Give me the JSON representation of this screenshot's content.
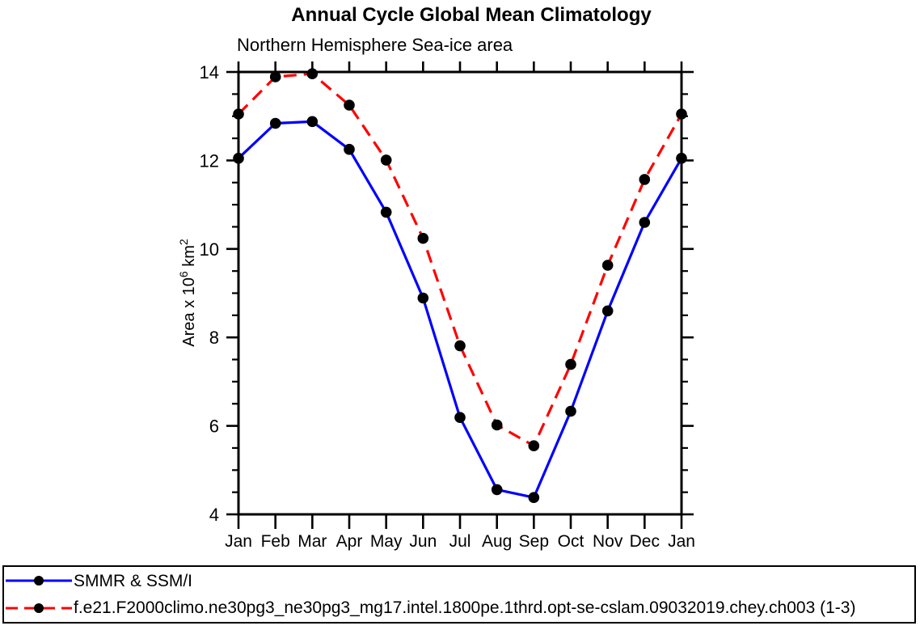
{
  "page": {
    "background_color": "#ffffff"
  },
  "chart_data": {
    "type": "line",
    "title": "Annual Cycle Global Mean Climatology",
    "subtitle": "Northern Hemisphere Sea-ice area",
    "x_categories": [
      "Jan",
      "Feb",
      "Mar",
      "Apr",
      "May",
      "Jun",
      "Jul",
      "Aug",
      "Sep",
      "Oct",
      "Nov",
      "Dec",
      "Jan"
    ],
    "ylabel_parts": [
      {
        "text": "Area x 10",
        "sup": false
      },
      {
        "text": "6",
        "sup": true
      },
      {
        "text": " km",
        "sup": false
      },
      {
        "text": "2",
        "sup": true
      }
    ],
    "ylim": [
      4,
      14
    ],
    "ytick_major": [
      4,
      6,
      8,
      10,
      12,
      14
    ],
    "ytick_minor_step": 0.5,
    "grid": false,
    "legend_position": "bottom-box",
    "series": [
      {
        "name": "SMMR & SSM/I",
        "color": "#0000ff",
        "line_style": "solid",
        "marker": "circle",
        "marker_color": "#000000",
        "values": [
          12.05,
          12.84,
          12.88,
          12.25,
          10.83,
          8.89,
          6.19,
          4.56,
          4.38,
          6.33,
          8.6,
          10.6,
          12.05
        ]
      },
      {
        "name": "f.e21.F2000climo.ne30pg3_ne30pg3_mg17.intel.1800pe.1thrd.opt-se-cslam.09032019.chey.ch003 (1-3)",
        "color": "#ff0000",
        "line_style": "dashed",
        "marker": "circle",
        "marker_color": "#000000",
        "values": [
          13.05,
          13.89,
          13.96,
          13.25,
          12.01,
          10.24,
          7.81,
          6.02,
          5.55,
          7.39,
          9.63,
          11.57,
          13.05
        ]
      }
    ]
  },
  "colors": {
    "axis": "#000000",
    "text": "#000000",
    "background": "#ffffff",
    "series_observed": "#0000ff",
    "series_model": "#ff0000",
    "marker": "#000000"
  }
}
